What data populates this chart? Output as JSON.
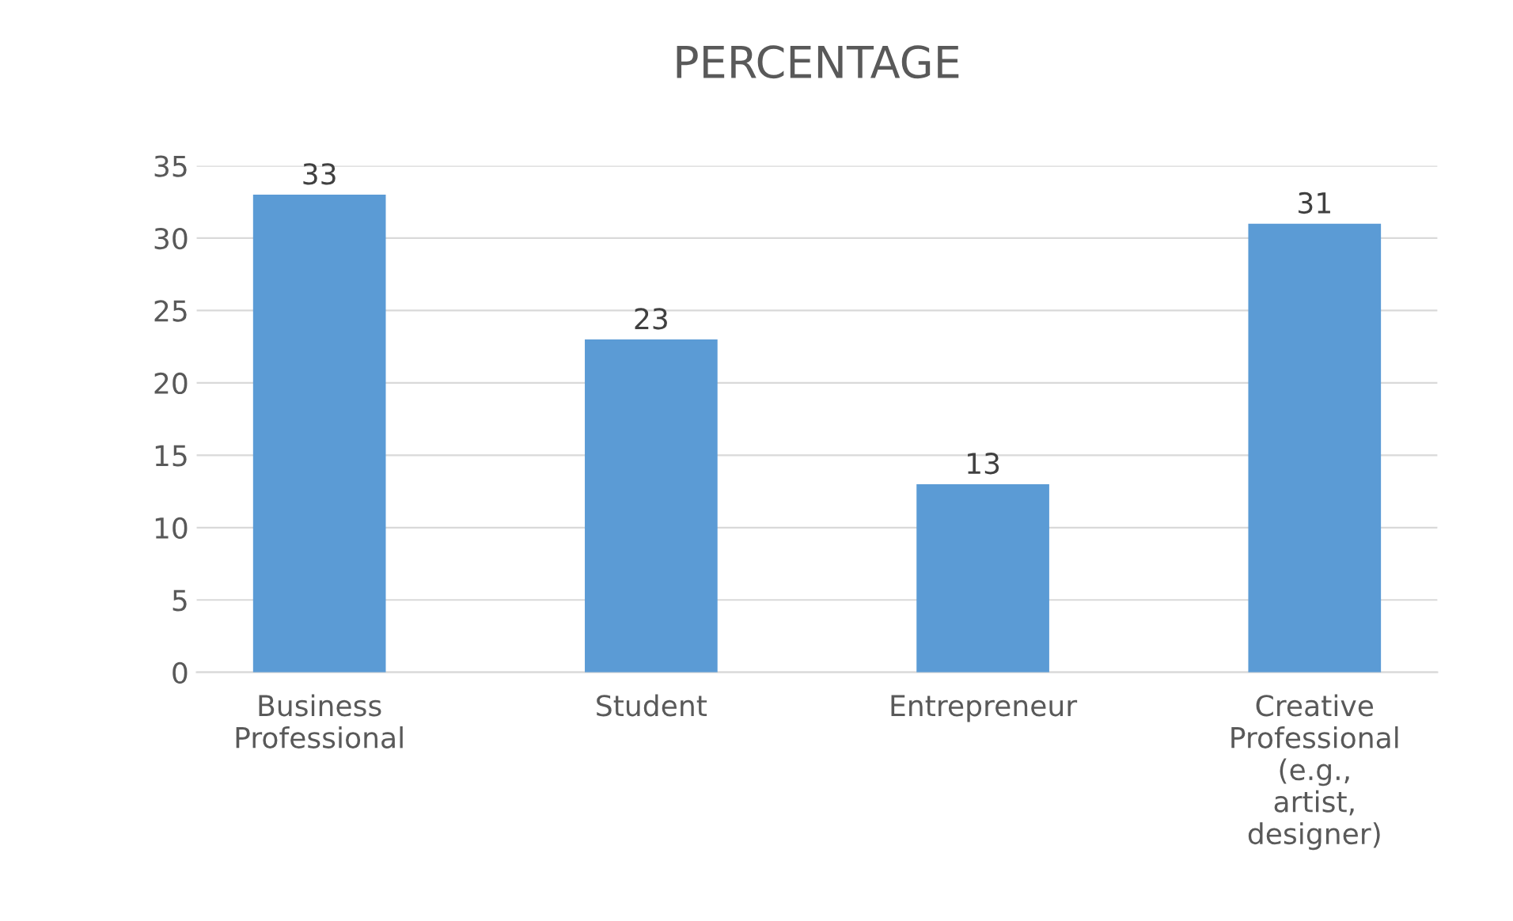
{
  "chart_data": {
    "type": "bar",
    "title": "PERCENTAGE",
    "categories": [
      "Business Professional",
      "Student",
      "Entrepreneur",
      "Creative Professional (e.g., artist, designer)"
    ],
    "values": [
      33,
      23,
      13,
      31
    ],
    "color": "#5b9bd5",
    "ylim": [
      0,
      35
    ],
    "yticks": [
      0,
      5,
      10,
      15,
      20,
      25,
      30,
      35
    ],
    "grid": "y",
    "data_labels": true,
    "legend": false
  }
}
